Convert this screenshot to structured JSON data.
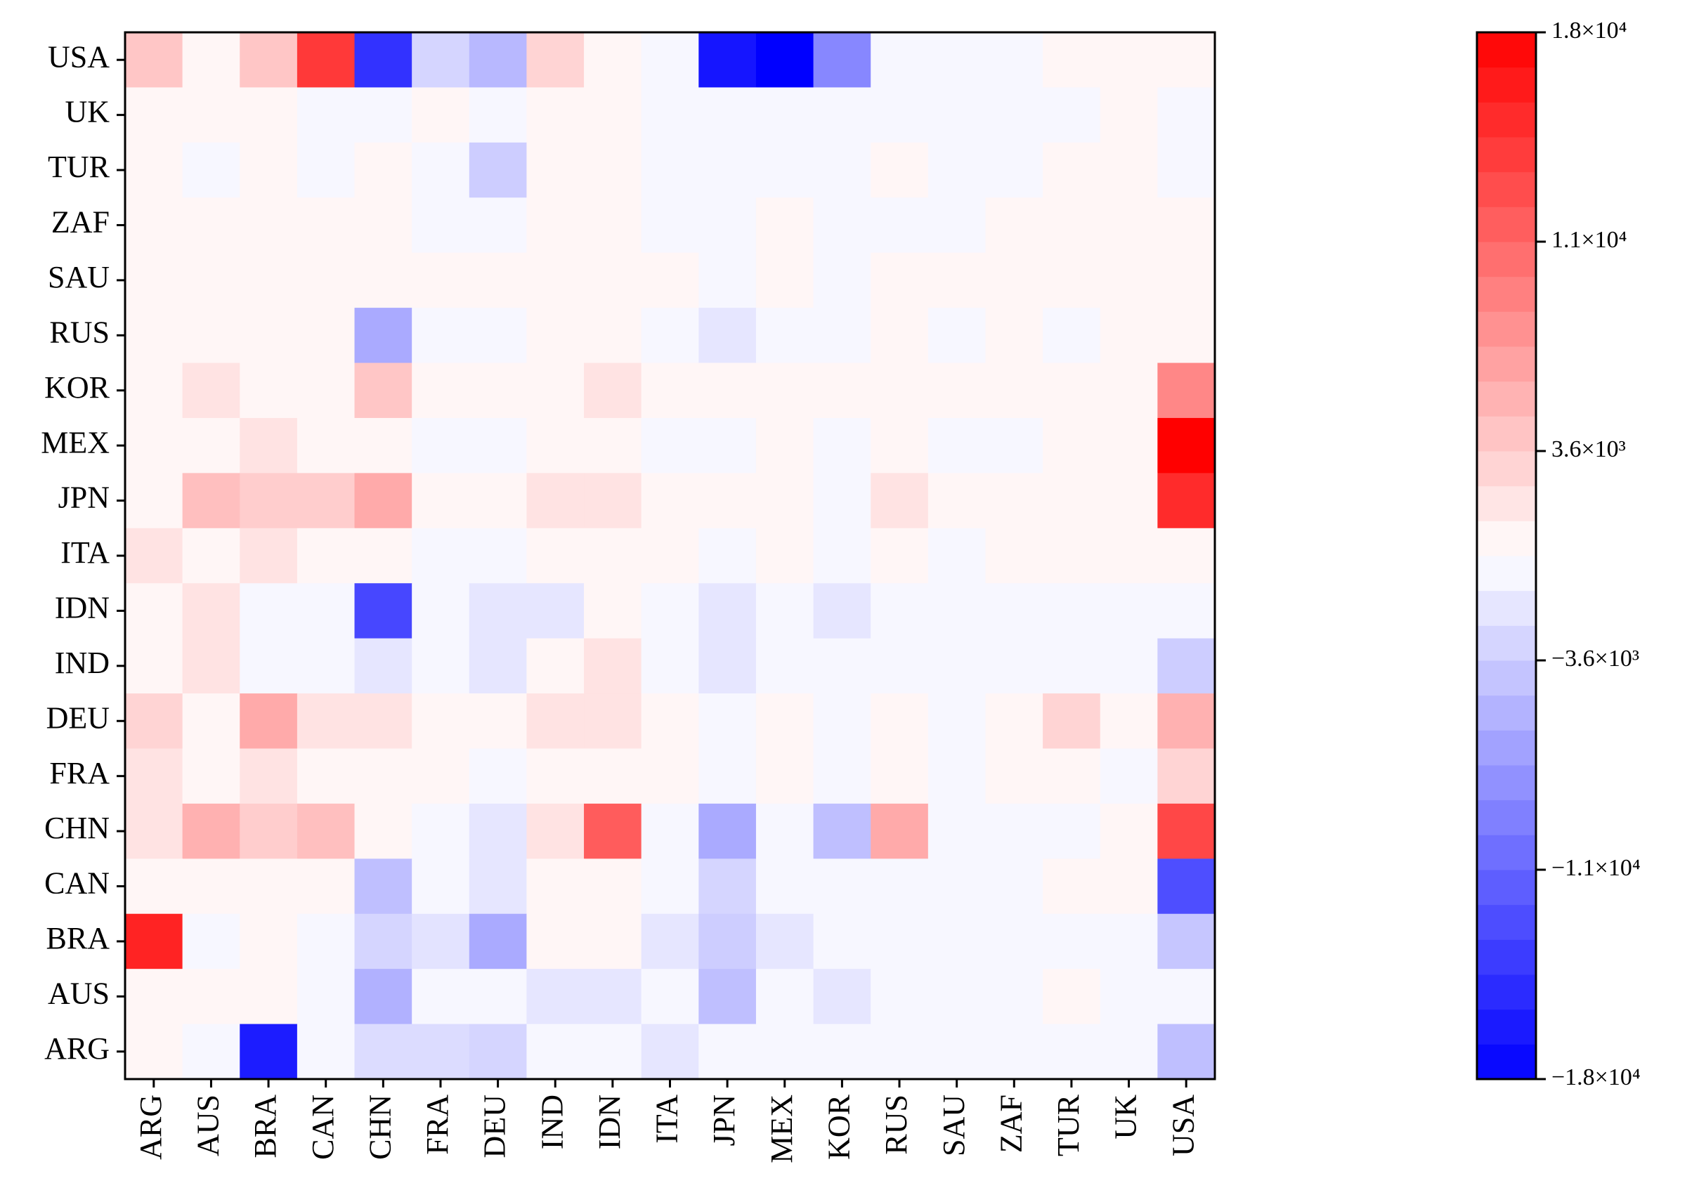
{
  "chart_data": {
    "type": "heatmap",
    "x_categories": [
      "ARG",
      "AUS",
      "BRA",
      "CAN",
      "CHN",
      "FRA",
      "DEU",
      "IND",
      "IDN",
      "ITA",
      "JPN",
      "MEX",
      "KOR",
      "RUS",
      "SAU",
      "ZAF",
      "TUR",
      "UK",
      "USA"
    ],
    "y_categories": [
      "USA",
      "UK",
      "TUR",
      "ZAF",
      "SAU",
      "RUS",
      "KOR",
      "MEX",
      "JPN",
      "ITA",
      "IDN",
      "IND",
      "DEU",
      "FRA",
      "CHN",
      "CAN",
      "BRA",
      "AUS",
      "ARG"
    ],
    "values": [
      [
        4000,
        600,
        4000,
        14000,
        -14500,
        -3000,
        -5000,
        3000,
        600,
        -600,
        -16500,
        -18000,
        -8500,
        -600,
        -600,
        -600,
        600,
        600,
        600
      ],
      [
        600,
        600,
        600,
        -600,
        -600,
        600,
        -600,
        600,
        600,
        -600,
        -600,
        -600,
        -600,
        -600,
        -600,
        -600,
        -600,
        600,
        -600
      ],
      [
        600,
        -600,
        600,
        -600,
        600,
        -600,
        -3500,
        600,
        600,
        -600,
        -600,
        -600,
        -600,
        600,
        -600,
        -600,
        600,
        600,
        -600
      ],
      [
        600,
        600,
        600,
        600,
        600,
        -600,
        -600,
        600,
        600,
        -600,
        -600,
        600,
        -600,
        -600,
        -600,
        600,
        600,
        600,
        600
      ],
      [
        600,
        600,
        600,
        600,
        600,
        600,
        600,
        600,
        600,
        600,
        -600,
        600,
        -600,
        600,
        600,
        600,
        600,
        600,
        600
      ],
      [
        600,
        600,
        600,
        600,
        -6000,
        -600,
        -600,
        600,
        600,
        -600,
        -1800,
        -600,
        -600,
        600,
        -600,
        600,
        -600,
        600,
        600
      ],
      [
        600,
        2000,
        600,
        600,
        4000,
        600,
        600,
        600,
        2000,
        600,
        600,
        600,
        600,
        600,
        600,
        600,
        600,
        600,
        8500
      ],
      [
        600,
        600,
        2000,
        600,
        600,
        -600,
        -600,
        600,
        600,
        -600,
        -600,
        600,
        -600,
        600,
        -600,
        -600,
        600,
        600,
        18000
      ],
      [
        600,
        4500,
        3500,
        3500,
        6000,
        600,
        600,
        2000,
        2000,
        600,
        600,
        600,
        -600,
        2000,
        600,
        600,
        600,
        600,
        15000
      ],
      [
        2000,
        600,
        2000,
        600,
        600,
        -600,
        -600,
        600,
        600,
        600,
        -600,
        600,
        -600,
        600,
        -600,
        600,
        600,
        600,
        600
      ],
      [
        600,
        2000,
        -600,
        -600,
        -13000,
        -600,
        -1800,
        -1800,
        600,
        -600,
        -1800,
        -600,
        -1800,
        -600,
        -600,
        -600,
        -600,
        -600,
        -600
      ],
      [
        600,
        2000,
        -600,
        -600,
        -1800,
        -600,
        -1800,
        600,
        2000,
        -600,
        -1800,
        -600,
        -600,
        -600,
        -600,
        -600,
        -600,
        -600,
        -3500
      ],
      [
        3000,
        600,
        6000,
        2000,
        2000,
        600,
        600,
        2000,
        2000,
        600,
        -600,
        600,
        -600,
        600,
        -600,
        600,
        3000,
        600,
        5500
      ],
      [
        2000,
        600,
        2000,
        600,
        600,
        600,
        -600,
        600,
        600,
        600,
        -600,
        600,
        -600,
        600,
        -600,
        600,
        600,
        -600,
        3000
      ],
      [
        2000,
        5500,
        3500,
        4500,
        600,
        -600,
        -1800,
        2000,
        11500,
        -600,
        -6000,
        -600,
        -4500,
        6000,
        -600,
        -600,
        -600,
        600,
        13000
      ],
      [
        600,
        600,
        600,
        600,
        -4500,
        -600,
        -1800,
        600,
        600,
        -600,
        -3000,
        -600,
        -600,
        -600,
        -600,
        -600,
        600,
        600,
        -12500
      ],
      [
        15500,
        -600,
        600,
        -600,
        -3000,
        -2000,
        -6000,
        600,
        600,
        -1800,
        -3500,
        -1800,
        -600,
        -600,
        -600,
        -600,
        -600,
        -600,
        -4000
      ],
      [
        600,
        600,
        600,
        -600,
        -5500,
        -600,
        -600,
        -1800,
        -1800,
        -600,
        -4500,
        -600,
        -1800,
        -600,
        -600,
        -600,
        600,
        -600,
        -600
      ],
      [
        600,
        -600,
        -16000,
        -600,
        -2500,
        -2500,
        -3000,
        -600,
        -600,
        -1800,
        -600,
        -600,
        -600,
        -600,
        -600,
        -600,
        -600,
        -600,
        -4500
      ]
    ],
    "colormap": [
      "#0000ff",
      "#ffffff",
      "#ff0000"
    ],
    "zlim": [
      -18000,
      18000
    ],
    "zticks": [
      {
        "value": 18000,
        "label": "1.8×10⁴"
      },
      {
        "value": 10800,
        "label": "1.1×10⁴"
      },
      {
        "value": 3600,
        "label": "3.6×10³"
      },
      {
        "value": -3600,
        "label": "−3.6×10³"
      },
      {
        "value": -10800,
        "label": "−1.1×10⁴"
      },
      {
        "value": -18000,
        "label": "−1.8×10⁴"
      }
    ]
  }
}
